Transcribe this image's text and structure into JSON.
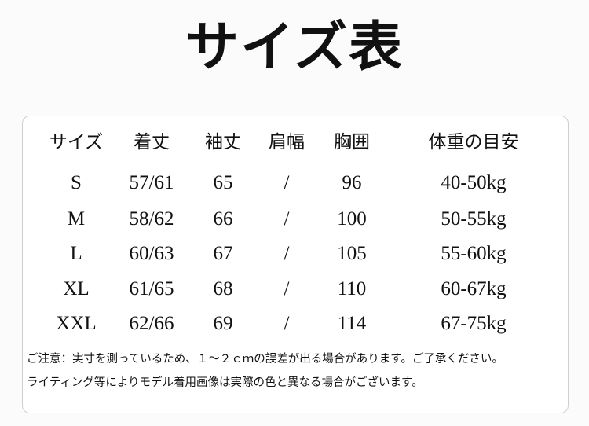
{
  "title": "サイズ表",
  "headers": [
    "サイズ",
    "着丈",
    "袖丈",
    "肩幅",
    "胸囲",
    "体重の目安"
  ],
  "rows": [
    [
      "S",
      "57/61",
      "65",
      "/",
      "96",
      "40-50kg"
    ],
    [
      "M",
      "58/62",
      "66",
      "/",
      "100",
      "50-55kg"
    ],
    [
      "L",
      "60/63",
      "67",
      "/",
      "105",
      "55-60kg"
    ],
    [
      "XL",
      "61/65",
      "68",
      "/",
      "110",
      "60-67kg"
    ],
    [
      "XXL",
      "62/66",
      "69",
      "/",
      "114",
      "67-75kg"
    ]
  ],
  "notes": [
    "ご注意：実寸を測っているため、１～２ｃｍの誤差が出る場合があります。ご了承ください。",
    "ライティング等によりモデル着用画像は実際の色と異なる場合がございます。"
  ]
}
